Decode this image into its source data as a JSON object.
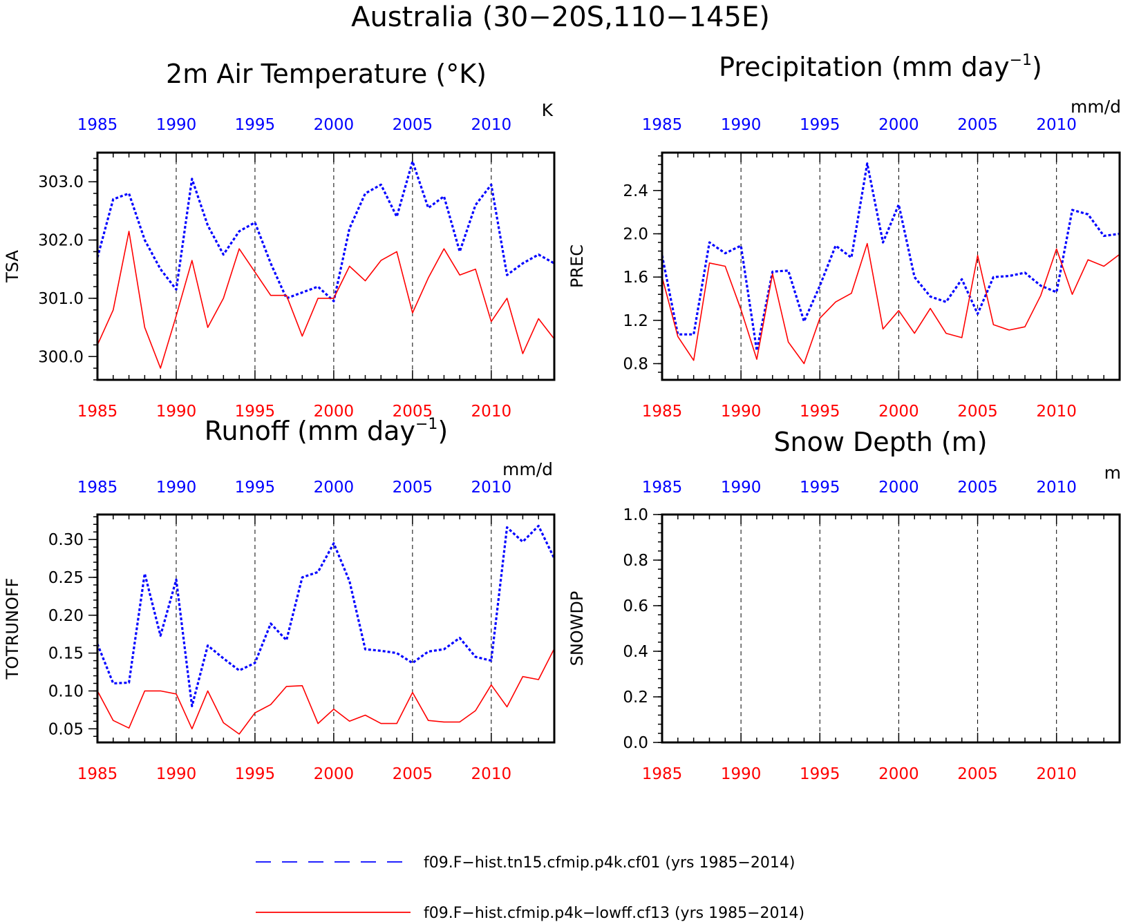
{
  "page": {
    "title": "Australia (30−20S,110−145E)"
  },
  "colors": {
    "series_a": "#0000ff",
    "series_b": "#ff0000",
    "axis": "#000000",
    "grid": "#000000"
  },
  "legend": [
    {
      "label": "f09.F−hist.tn15.cfmip.p4k.cf01 (yrs 1985−2014)",
      "color": "#0000ff",
      "style": "dashed"
    },
    {
      "label": "f09.F−hist.cfmip.p4k−lowff.cf13 (yrs 1985−2014)",
      "color": "#ff0000",
      "style": "solid"
    }
  ],
  "chart_data": [
    {
      "type": "line",
      "title": "2m Air Temperature (°K)",
      "ylabel": "TSA",
      "units": "K",
      "xlim": [
        1985,
        2014
      ],
      "ylim": [
        299.6,
        303.5
      ],
      "yticks": [
        300.0,
        301.0,
        302.0,
        303.0
      ],
      "ytick_labels": [
        "300.0",
        "301.0",
        "302.0",
        "303.0"
      ],
      "xticks": [
        1985,
        1990,
        1995,
        2000,
        2005,
        2010
      ],
      "xtick_labels": [
        "1985",
        "1990",
        "1995",
        "2000",
        "2005",
        "2010"
      ],
      "grid": "dashed vertical at 5-year ticks",
      "x": [
        1985,
        1986,
        1987,
        1988,
        1989,
        1990,
        1991,
        1992,
        1993,
        1994,
        1995,
        1996,
        1997,
        1998,
        1999,
        2000,
        2001,
        2002,
        2003,
        2004,
        2005,
        2006,
        2007,
        2008,
        2009,
        2010,
        2011,
        2012,
        2013,
        2014
      ],
      "series": [
        {
          "values": [
            301.7,
            302.7,
            302.8,
            302.0,
            301.5,
            301.15,
            303.05,
            302.25,
            301.75,
            302.15,
            302.3,
            301.6,
            301.0,
            301.1,
            301.2,
            300.95,
            302.2,
            302.8,
            302.95,
            302.4,
            303.35,
            302.55,
            302.75,
            301.8,
            302.6,
            302.95,
            301.4,
            301.6,
            301.75,
            301.6
          ]
        },
        {
          "values": [
            300.2,
            300.8,
            302.15,
            300.5,
            299.8,
            300.7,
            301.65,
            300.5,
            301.0,
            301.85,
            301.45,
            301.05,
            301.05,
            300.35,
            301.0,
            301.0,
            301.55,
            301.3,
            301.65,
            301.8,
            300.75,
            301.35,
            301.85,
            301.4,
            301.5,
            300.6,
            301.0,
            300.05,
            300.65,
            300.3
          ]
        }
      ]
    },
    {
      "type": "line",
      "title": "Precipitation (mm day",
      "title_sup": "−1",
      "title_end": ")",
      "ylabel": "PREC",
      "units": "mm/d",
      "xlim": [
        1985,
        2014
      ],
      "ylim": [
        0.65,
        2.75
      ],
      "yticks": [
        0.8,
        1.2,
        1.6,
        2.0,
        2.4
      ],
      "ytick_labels": [
        "0.8",
        "1.2",
        "1.6",
        "2.0",
        "2.4"
      ],
      "xticks": [
        1985,
        1990,
        1995,
        2000,
        2005,
        2010
      ],
      "xtick_labels": [
        "1985",
        "1990",
        "1995",
        "2000",
        "2005",
        "2010"
      ],
      "grid": "dashed vertical at 5-year ticks",
      "x": [
        1985,
        1986,
        1987,
        1988,
        1989,
        1990,
        1991,
        1992,
        1993,
        1994,
        1995,
        1996,
        1997,
        1998,
        1999,
        2000,
        2001,
        2002,
        2003,
        2004,
        2005,
        2006,
        2007,
        2008,
        2009,
        2010,
        2011,
        2012,
        2013,
        2014
      ],
      "series": [
        {
          "values": [
            1.8,
            1.07,
            1.07,
            1.92,
            1.82,
            1.89,
            0.92,
            1.65,
            1.66,
            1.19,
            1.52,
            1.89,
            1.78,
            2.65,
            1.92,
            2.27,
            1.6,
            1.42,
            1.37,
            1.58,
            1.26,
            1.6,
            1.61,
            1.64,
            1.52,
            1.46,
            2.22,
            2.18,
            1.98,
            2.0
          ]
        },
        {
          "values": [
            1.6,
            1.05,
            0.83,
            1.73,
            1.7,
            1.3,
            0.84,
            1.63,
            1.0,
            0.8,
            1.22,
            1.37,
            1.45,
            1.91,
            1.12,
            1.29,
            1.08,
            1.31,
            1.08,
            1.04,
            1.8,
            1.16,
            1.11,
            1.14,
            1.43,
            1.86,
            1.44,
            1.76,
            1.7,
            1.81
          ]
        }
      ]
    },
    {
      "type": "line",
      "title": "Runoff (mm day",
      "title_sup": "−1",
      "title_end": ")",
      "ylabel": "TOTRUNOFF",
      "units": "mm/d",
      "xlim": [
        1985,
        2014
      ],
      "ylim": [
        0.032,
        0.333
      ],
      "yticks": [
        0.05,
        0.1,
        0.15,
        0.2,
        0.25,
        0.3
      ],
      "ytick_labels": [
        "0.05",
        "0.10",
        "0.15",
        "0.20",
        "0.25",
        "0.30"
      ],
      "xticks": [
        1985,
        1990,
        1995,
        2000,
        2005,
        2010
      ],
      "xtick_labels": [
        "1985",
        "1990",
        "1995",
        "2000",
        "2005",
        "2010"
      ],
      "grid": "dashed vertical at 5-year ticks",
      "x": [
        1985,
        1986,
        1987,
        1988,
        1989,
        1990,
        1991,
        1992,
        1993,
        1994,
        1995,
        1996,
        1997,
        1998,
        1999,
        2000,
        2001,
        2002,
        2003,
        2004,
        2005,
        2006,
        2007,
        2008,
        2009,
        2010,
        2011,
        2012,
        2013,
        2014
      ],
      "series": [
        {
          "values": [
            0.162,
            0.11,
            0.111,
            0.255,
            0.173,
            0.247,
            0.08,
            0.16,
            0.143,
            0.127,
            0.137,
            0.189,
            0.167,
            0.25,
            0.257,
            0.295,
            0.245,
            0.155,
            0.153,
            0.15,
            0.137,
            0.152,
            0.155,
            0.17,
            0.145,
            0.14,
            0.316,
            0.297,
            0.318,
            0.275
          ]
        },
        {
          "values": [
            0.1,
            0.061,
            0.051,
            0.1,
            0.1,
            0.096,
            0.05,
            0.1,
            0.058,
            0.043,
            0.071,
            0.082,
            0.106,
            0.107,
            0.057,
            0.076,
            0.06,
            0.068,
            0.057,
            0.057,
            0.098,
            0.061,
            0.059,
            0.059,
            0.074,
            0.108,
            0.079,
            0.119,
            0.115,
            0.156
          ]
        }
      ]
    },
    {
      "type": "line",
      "title": "Snow Depth (m)",
      "ylabel": "SNOWDP",
      "units": "m",
      "xlim": [
        1985,
        2014
      ],
      "ylim": [
        0.0,
        1.0
      ],
      "yticks": [
        0.0,
        0.2,
        0.4,
        0.6,
        0.8,
        1.0
      ],
      "ytick_labels": [
        "0.0",
        "0.2",
        "0.4",
        "0.6",
        "0.8",
        "1.0"
      ],
      "xticks": [
        1985,
        1990,
        1995,
        2000,
        2005,
        2010
      ],
      "xtick_labels": [
        "1985",
        "1990",
        "1995",
        "2000",
        "2005",
        "2010"
      ],
      "grid": "dashed vertical at 5-year ticks",
      "x": [],
      "series": []
    }
  ]
}
